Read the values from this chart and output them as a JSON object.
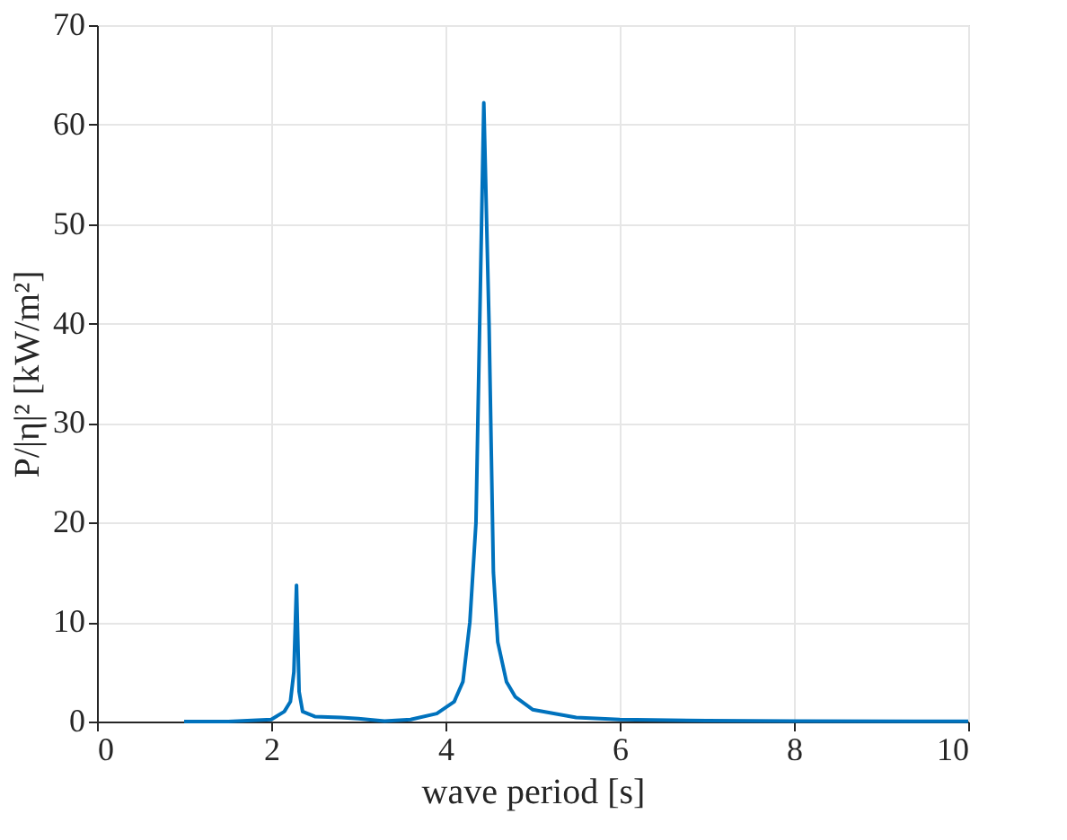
{
  "chart_data": {
    "type": "line",
    "xlabel": "wave period [s]",
    "ylabel": "P/|η|² [kW/m²]",
    "xlim": [
      0,
      10
    ],
    "xticks": [
      0,
      2,
      4,
      6,
      8,
      10
    ],
    "ylim": [
      0,
      70
    ],
    "yticks": [
      0,
      10,
      20,
      30,
      40,
      50,
      60,
      70
    ],
    "grid": true,
    "series": [
      {
        "color": "#0072bd",
        "x": [
          1,
          1.5,
          2.0,
          2.15,
          2.22,
          2.26,
          2.29,
          2.32,
          2.36,
          2.5,
          2.8,
          3.0,
          3.3,
          3.6,
          3.9,
          4.1,
          4.2,
          4.28,
          4.35,
          4.44,
          4.5,
          4.55,
          4.6,
          4.7,
          4.8,
          5.0,
          5.5,
          6,
          7,
          8,
          10
        ],
        "values": [
          0,
          0,
          0.2,
          1,
          2,
          5,
          13.7,
          3,
          1,
          0.5,
          0.4,
          0.3,
          0.05,
          0.2,
          0.8,
          2,
          4,
          10,
          20,
          62.2,
          40,
          15,
          8,
          4,
          2.5,
          1.2,
          0.4,
          0.2,
          0.08,
          0.04,
          0.02
        ]
      }
    ]
  }
}
